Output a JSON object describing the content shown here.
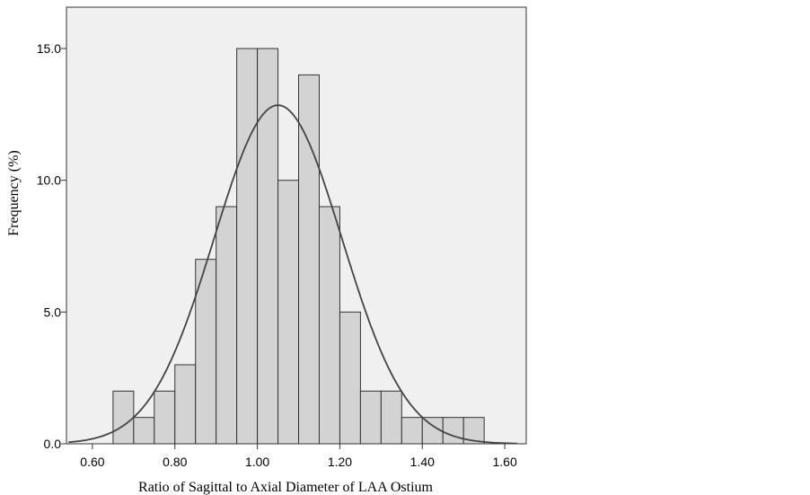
{
  "chart_data": {
    "type": "bar",
    "subtype": "histogram-with-normal-curve",
    "xlabel": "Ratio of Sagittal to Axial Diameter of LAA Ostium",
    "ylabel": "Frequency (%)",
    "xlim": [
      0.537,
      1.652
    ],
    "ylim": [
      0,
      16.57
    ],
    "xticks": [
      "0.60",
      "0.80",
      "1.00",
      "1.20",
      "1.40",
      "1.60"
    ],
    "xtick_values": [
      0.6,
      0.8,
      1.0,
      1.2,
      1.4,
      1.6
    ],
    "yticks": [
      "0.0",
      "5.0",
      "10.0",
      "15.0"
    ],
    "ytick_values": [
      0,
      5,
      10,
      15
    ],
    "bin_width": 0.05,
    "bin_starts": [
      0.65,
      0.7,
      0.75,
      0.8,
      0.85,
      0.9,
      0.95,
      1.0,
      1.05,
      1.1,
      1.15,
      1.2,
      1.25,
      1.3,
      1.35,
      1.4,
      1.45,
      1.5
    ],
    "values": [
      2,
      1,
      2,
      3,
      7,
      9,
      15,
      15,
      10,
      14,
      9,
      5,
      2,
      2,
      1,
      1,
      1,
      1
    ],
    "normal_curve": {
      "mean": 1.05,
      "sd": 0.155,
      "peak": 12.85
    },
    "grid": false,
    "colors": {
      "plot_bg": "#f0f0f0",
      "bar_fill": "#d3d3d3",
      "bar_edge": "#333333",
      "curve": "#444444"
    }
  }
}
